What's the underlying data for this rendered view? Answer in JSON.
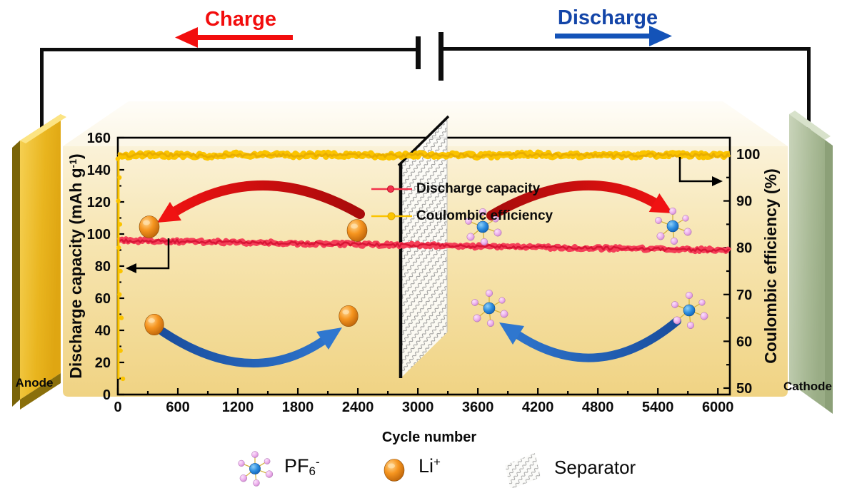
{
  "circuit": {
    "charge_label": "Charge",
    "discharge_label": "Discharge",
    "charge_color": "#F20D0D",
    "discharge_color": "#1345A8",
    "wire_color": "#0D0D0D"
  },
  "cell": {
    "anode_label": "Anode",
    "cathode_label": "Cathode",
    "anode_color": "#E9B51F",
    "cathode_color": "#A9BA96",
    "electrolyte_top_color": "#FEFCF4",
    "electrolyte_bottom_color": "#F0D383"
  },
  "chart_data": {
    "type": "line",
    "title": "",
    "xlabel": "Cycle number",
    "ylabel_left": "Discharge capacity (mAh g⁻¹)",
    "ylabel_left_parts": {
      "pre": "Discharge capacity (mAh g",
      "sup": "-1",
      "post": ")"
    },
    "ylabel_right": "Coulombic efficiency (%)",
    "xlim": [
      0,
      6120
    ],
    "ylim_left": [
      0,
      160
    ],
    "ylim_right": [
      48.5,
      103.5
    ],
    "x_ticks": [
      0,
      600,
      1200,
      1800,
      2400,
      3000,
      3600,
      4200,
      4800,
      5400,
      6000
    ],
    "x_minor_step": 300,
    "y_ticks_left": [
      0,
      20,
      40,
      60,
      80,
      100,
      120,
      140,
      160
    ],
    "y_ticks_right": [
      50,
      60,
      70,
      80,
      90,
      100
    ],
    "grid": false,
    "legend_position": "inside-center",
    "legend": [
      {
        "label": "Discharge capacity",
        "color": "#F2334C"
      },
      {
        "label": "Coulombic efficiency",
        "color": "#FBC400"
      }
    ],
    "series": [
      {
        "name": "Discharge capacity",
        "axis": "left",
        "color": "#F2334C",
        "x": [
          0,
          300,
          600,
          900,
          1200,
          1500,
          1800,
          2100,
          2400,
          2700,
          3000,
          3300,
          3600,
          3900,
          4200,
          4500,
          4800,
          5100,
          5400,
          5700,
          6000,
          6120
        ],
        "y": [
          96.0,
          95.7,
          95.4,
          95.1,
          94.8,
          94.5,
          94.2,
          93.9,
          93.6,
          93.3,
          93.0,
          92.7,
          92.4,
          92.1,
          91.8,
          91.5,
          91.2,
          90.9,
          90.6,
          90.3,
          90.0,
          89.9
        ]
      },
      {
        "name": "Coulombic efficiency",
        "axis": "right",
        "color": "#FBC400",
        "x": [
          0,
          300,
          600,
          900,
          1200,
          1500,
          1800,
          2100,
          2400,
          2700,
          3000,
          3300,
          3600,
          3900,
          4200,
          4500,
          4800,
          5100,
          5400,
          5700,
          6000,
          6120
        ],
        "y": [
          99.7,
          99.9,
          99.8,
          99.6,
          99.9,
          99.8,
          99.7,
          99.9,
          99.8,
          99.7,
          99.8,
          99.9,
          99.6,
          99.8,
          99.9,
          99.7,
          99.8,
          99.6,
          99.9,
          99.8,
          99.7,
          99.8
        ]
      }
    ],
    "initial_scatter": {
      "name": "Coulombic efficiency (first cycles)",
      "axis": "right",
      "color": "#FBC400",
      "x": [
        3,
        5,
        8,
        10,
        12,
        15,
        20,
        25,
        30,
        40
      ],
      "y": [
        99,
        95,
        90,
        85,
        80,
        75,
        70,
        65,
        58,
        52
      ]
    }
  },
  "molecule_legend": {
    "pf6_parts": {
      "pre": "PF",
      "sub": "6",
      "sup": "-"
    },
    "li_parts": {
      "pre": "Li",
      "sup": "+"
    },
    "separator_label": "Separator",
    "li_color": "#F6951F",
    "pf6_center_color": "#2E8FE0",
    "pf6_satellite_color": "#EDAFEC"
  }
}
